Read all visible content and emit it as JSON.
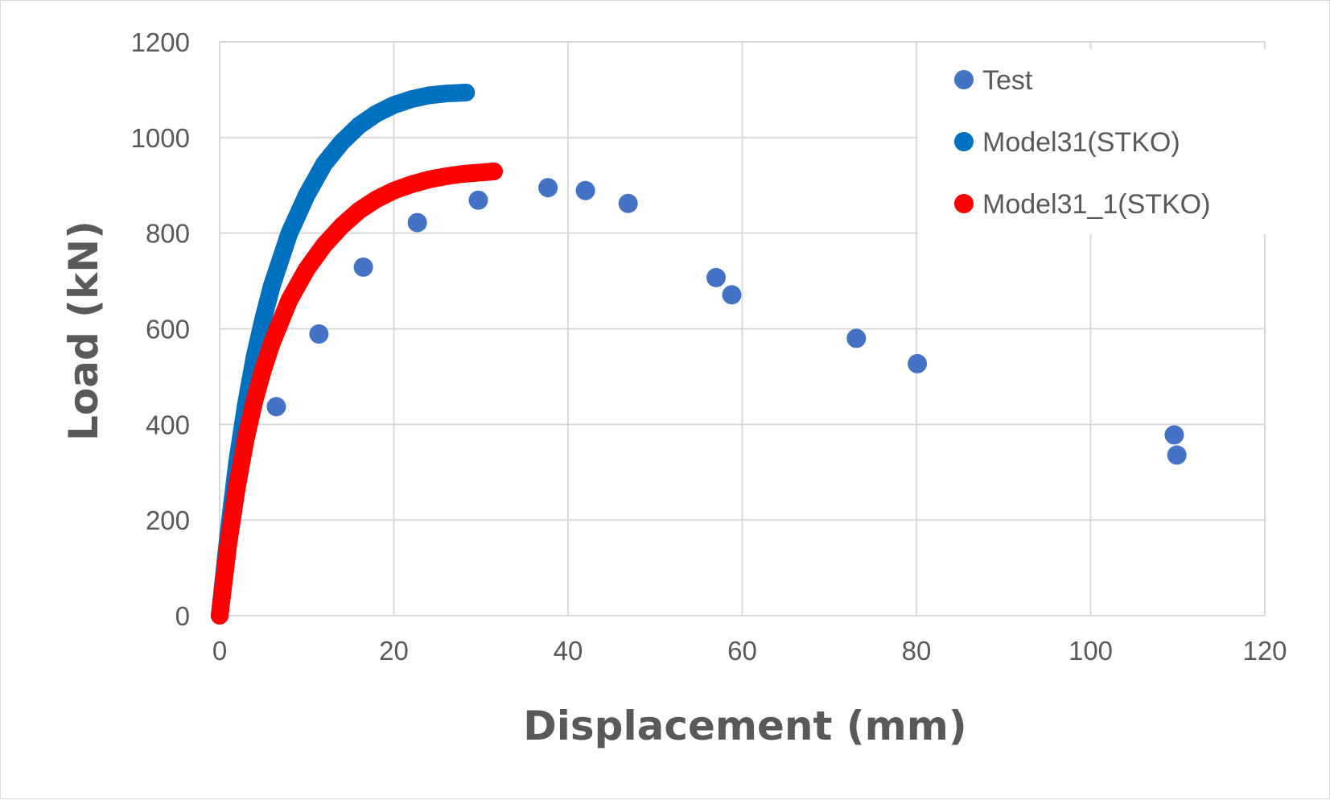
{
  "chart_data": {
    "type": "scatter",
    "title": "",
    "xlabel": "Displacement (mm)",
    "ylabel": "Load (kN)",
    "xlim": [
      0,
      120
    ],
    "ylim": [
      0,
      1200
    ],
    "x_ticks": [
      "0",
      "20",
      "40",
      "60",
      "80",
      "100",
      "120"
    ],
    "y_ticks": [
      "0",
      "200",
      "400",
      "600",
      "800",
      "1000",
      "1200"
    ],
    "grid": true,
    "legend_position": "top-right",
    "series": [
      {
        "name": "Test",
        "style": "markers",
        "color": "#4472C4",
        "points": [
          [
            6.5,
            437
          ],
          [
            11.4,
            589
          ],
          [
            16.5,
            729
          ],
          [
            22.7,
            822
          ],
          [
            29.7,
            869
          ],
          [
            37.7,
            895
          ],
          [
            42.0,
            889
          ],
          [
            46.9,
            862
          ],
          [
            57.0,
            707
          ],
          [
            58.8,
            671
          ],
          [
            73.1,
            580
          ],
          [
            80.1,
            527
          ],
          [
            109.6,
            378
          ],
          [
            109.9,
            336
          ]
        ]
      },
      {
        "name": "Model31(STKO)",
        "style": "thick-line",
        "color": "#0070C0",
        "points": [
          [
            0,
            0
          ],
          [
            1,
            170
          ],
          [
            2,
            320
          ],
          [
            3,
            440
          ],
          [
            4,
            540
          ],
          [
            5,
            620
          ],
          [
            6,
            690
          ],
          [
            8,
            800
          ],
          [
            10,
            880
          ],
          [
            12,
            945
          ],
          [
            14,
            990
          ],
          [
            16,
            1025
          ],
          [
            18,
            1050
          ],
          [
            20,
            1068
          ],
          [
            22,
            1080
          ],
          [
            24,
            1088
          ],
          [
            26,
            1092
          ],
          [
            28.3,
            1094
          ]
        ]
      },
      {
        "name": "Model31_1(STKO)",
        "style": "thick-line",
        "color": "#FF0000",
        "points": [
          [
            0,
            0
          ],
          [
            1,
            150
          ],
          [
            2,
            270
          ],
          [
            3,
            370
          ],
          [
            4,
            450
          ],
          [
            5,
            515
          ],
          [
            6,
            570
          ],
          [
            8,
            660
          ],
          [
            10,
            725
          ],
          [
            12,
            775
          ],
          [
            14,
            815
          ],
          [
            16,
            847
          ],
          [
            18,
            871
          ],
          [
            20,
            889
          ],
          [
            22,
            902
          ],
          [
            24,
            912
          ],
          [
            26,
            919
          ],
          [
            28,
            924
          ],
          [
            31.5,
            929
          ]
        ]
      }
    ]
  }
}
